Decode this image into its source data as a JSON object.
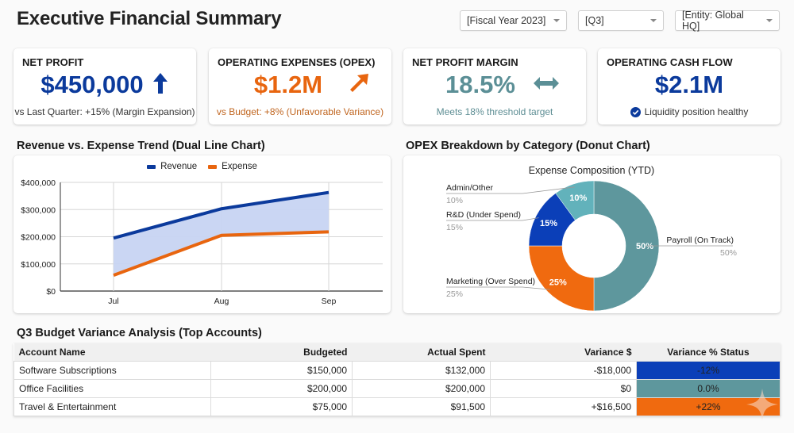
{
  "header": {
    "title": "Executive Financial Summary",
    "filters": [
      {
        "value": "[Fiscal Year 2023]"
      },
      {
        "value": "[Q3]"
      },
      {
        "value": "[Entity: Global HQ]"
      }
    ]
  },
  "kpis": [
    {
      "label": "NET PROFIT",
      "value": "$450,000",
      "trend_icon": "arrow-up-icon",
      "sub": "vs Last Quarter: +15% (Margin Expansion)",
      "color": "#0b3a9c"
    },
    {
      "label": "OPERATING EXPENSES (OPEX)",
      "value": "$1.2M",
      "trend_icon": "arrow-up-right-icon",
      "sub": "vs Budget: +8% (Unfavorable Variance)",
      "color": "#e8650f"
    },
    {
      "label": "NET PROFIT MARGIN",
      "value": "18.5%",
      "trend_icon": "arrow-left-right-icon",
      "sub": "Meets 18% threshold target",
      "color": "#5b8f96"
    },
    {
      "label": "OPERATING CASH FLOW",
      "value": "$2.1M",
      "trend_icon": "check-circle-icon",
      "sub": "Liquidity position healthy",
      "color": "#0b3a9c"
    }
  ],
  "sections": {
    "line_title": "Revenue vs. Expense Trend (Dual Line Chart)",
    "donut_title": "OPEX Breakdown by Category (Donut Chart)",
    "table_title": "Q3 Budget Variance Analysis (Top Accounts)"
  },
  "chart_data": [
    {
      "type": "line",
      "title": "Revenue vs. Expense Trend (Dual Line Chart)",
      "categories": [
        "Jul",
        "Aug",
        "Sep"
      ],
      "series": [
        {
          "name": "Revenue",
          "values": [
            195000,
            303000,
            363000
          ],
          "color": "#0b3a9c"
        },
        {
          "name": "Expense",
          "values": [
            58000,
            205000,
            218000
          ],
          "color": "#e8650f"
        }
      ],
      "fill_between": true,
      "fill_color": "#c7d4f2",
      "ylim": [
        0,
        400000
      ],
      "yticks": [
        0,
        100000,
        200000,
        300000,
        400000
      ],
      "ytick_labels": [
        "$0",
        "$100,000",
        "$200,000",
        "$300,000",
        "$400,000"
      ],
      "xlabel": "",
      "ylabel": "",
      "grid": true,
      "legend": "top-center"
    },
    {
      "type": "pie",
      "donut": true,
      "title": "Expense Composition (YTD)",
      "slices": [
        {
          "label": "Payroll (On Track)",
          "value": 50,
          "pct_label": "50%",
          "color": "#5e979d"
        },
        {
          "label": "Marketing (Over Spend)",
          "value": 25,
          "pct_label": "25%",
          "color": "#f06a0f"
        },
        {
          "label": "R&D (Under Spend)",
          "value": 15,
          "pct_label": "15%",
          "color": "#0b3fb8"
        },
        {
          "label": "Admin/Other",
          "value": 10,
          "pct_label": "10%",
          "color": "#62b2bb"
        }
      ]
    }
  ],
  "table": {
    "headers": [
      "Account Name",
      "Budgeted",
      "Actual Spent",
      "Variance $",
      "Variance % Status"
    ],
    "rows": [
      {
        "account": "Software Subscriptions",
        "budgeted": "$150,000",
        "actual": "$132,000",
        "variance": "-$18,000",
        "status": "-12%",
        "status_color": "#0b3fb8"
      },
      {
        "account": "Office Facilities",
        "budgeted": "$200,000",
        "actual": "$200,000",
        "variance": "$0",
        "status": "0.0%",
        "status_color": "#5e979d"
      },
      {
        "account": "Travel & Entertainment",
        "budgeted": "$75,000",
        "actual": "$91,500",
        "variance": "+$16,500",
        "status": "+22%",
        "status_color": "#f06a0f"
      }
    ]
  }
}
